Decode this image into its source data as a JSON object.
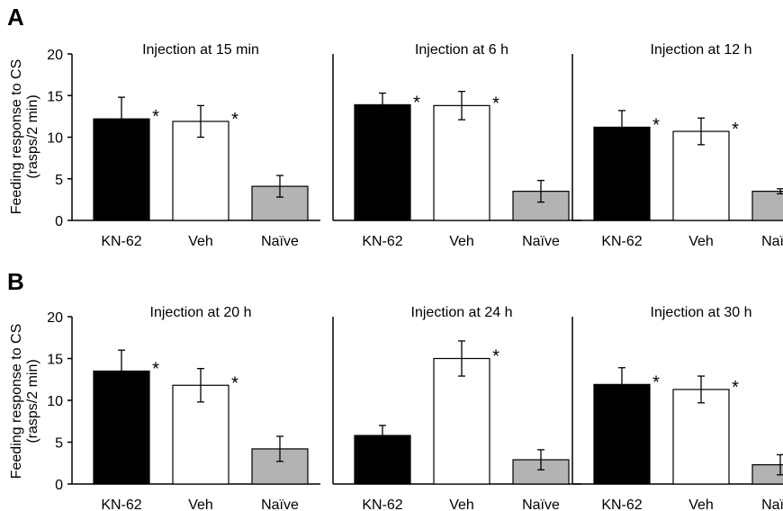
{
  "panels": [
    {
      "letter": "A",
      "ylabel_line1": "Feeding response to CS",
      "ylabel_line2": "(rasps/2 min)"
    },
    {
      "letter": "B",
      "ylabel_line1": "Feeding response to CS",
      "ylabel_line2": "(rasps/2 min)"
    }
  ],
  "colors": {
    "KN-62": "#000000",
    "Veh": "#ffffff",
    "Naïve": "#b3b3b3"
  },
  "chart_data": [
    {
      "type": "bar",
      "panel": "A",
      "title": "Injection at 15 min",
      "categories": [
        "KN-62",
        "Veh",
        "Naïve"
      ],
      "values": [
        12.2,
        11.9,
        4.1
      ],
      "error": [
        2.6,
        1.9,
        1.3
      ],
      "significance": [
        "*",
        "*",
        ""
      ],
      "ylim": [
        0,
        20
      ],
      "yticks": [
        0,
        5,
        10,
        15,
        20
      ],
      "show_yaxis": true
    },
    {
      "type": "bar",
      "panel": "A",
      "title": "Injection at 6 h",
      "categories": [
        "KN-62",
        "Veh",
        "Naïve"
      ],
      "values": [
        13.9,
        13.8,
        3.5
      ],
      "error": [
        1.4,
        1.7,
        1.3
      ],
      "significance": [
        "*",
        "*",
        ""
      ],
      "ylim": [
        0,
        20
      ],
      "yticks": [],
      "show_yaxis": false
    },
    {
      "type": "bar",
      "panel": "A",
      "title": "Injection at 12 h",
      "categories": [
        "KN-62",
        "Veh",
        "Naïve"
      ],
      "values": [
        11.2,
        10.7,
        3.5
      ],
      "error": [
        2.0,
        1.6,
        0.3
      ],
      "significance": [
        "*",
        "*",
        ""
      ],
      "ylim": [
        0,
        20
      ],
      "yticks": [],
      "show_yaxis": false
    },
    {
      "type": "bar",
      "panel": "B",
      "title": "Injection at 20 h",
      "categories": [
        "KN-62",
        "Veh",
        "Naïve"
      ],
      "values": [
        13.5,
        11.8,
        4.2
      ],
      "error": [
        2.5,
        2.0,
        1.5
      ],
      "significance": [
        "*",
        "*",
        ""
      ],
      "ylim": [
        0,
        20
      ],
      "yticks": [
        0,
        5,
        10,
        15,
        20
      ],
      "show_yaxis": true
    },
    {
      "type": "bar",
      "panel": "B",
      "title": "Injection at 24 h",
      "categories": [
        "KN-62",
        "Veh",
        "Naïve"
      ],
      "values": [
        5.8,
        15.0,
        2.9
      ],
      "error": [
        1.2,
        2.1,
        1.2
      ],
      "significance": [
        "",
        "*",
        ""
      ],
      "ylim": [
        0,
        20
      ],
      "yticks": [],
      "show_yaxis": false
    },
    {
      "type": "bar",
      "panel": "B",
      "title": "Injection at 30 h",
      "categories": [
        "KN-62",
        "Veh",
        "Naïve"
      ],
      "values": [
        11.9,
        11.3,
        2.3
      ],
      "error": [
        2.0,
        1.6,
        1.2
      ],
      "significance": [
        "*",
        "*",
        ""
      ],
      "ylim": [
        0,
        20
      ],
      "yticks": [],
      "show_yaxis": false
    }
  ]
}
